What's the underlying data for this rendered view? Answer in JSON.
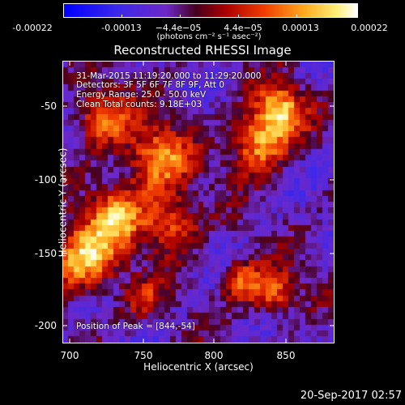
{
  "chart_data": {
    "type": "heatmap",
    "title": "Reconstructed RHESSI Image",
    "xlabel": "Heliocentric X (arcsec)",
    "ylabel": "Heliocentric Y (arcsec)",
    "xlim": [
      695,
      887
    ],
    "ylim": [
      -217,
      -22
    ],
    "x_ticks": [
      "700",
      "750",
      "800",
      "850"
    ],
    "y_ticks": [
      "-50",
      "-100",
      "-150",
      "-200"
    ],
    "colorbar": {
      "ticks": [
        "-0.00022",
        "-0.00013",
        "−4.4e−05",
        "4.4e−05",
        "0.00013",
        "0.00022"
      ],
      "label": "(photons cm⁻² s⁻¹ asec⁻²)",
      "colors": [
        "#0000ff",
        "#7a2bd6",
        "#c0101a",
        "#ff7a00",
        "#ffff80",
        "#ffffff"
      ]
    },
    "annotations": {
      "time_range": "31-Mar-2015 11:19:20.000 to 11:29:20.000",
      "detectors": "Detectors: 3F 5F 6F 7F 8F 9F, Att 0",
      "energy": "Energy Range: 25.0 - 50.0 keV",
      "clean": "Clean      Total counts: 9.18E+03",
      "peak": "Position of Peak = [844,-54]"
    },
    "peak_position": [
      844,
      -54
    ]
  },
  "footer": {
    "timestamp": "20-Sep-2017 02:57"
  }
}
